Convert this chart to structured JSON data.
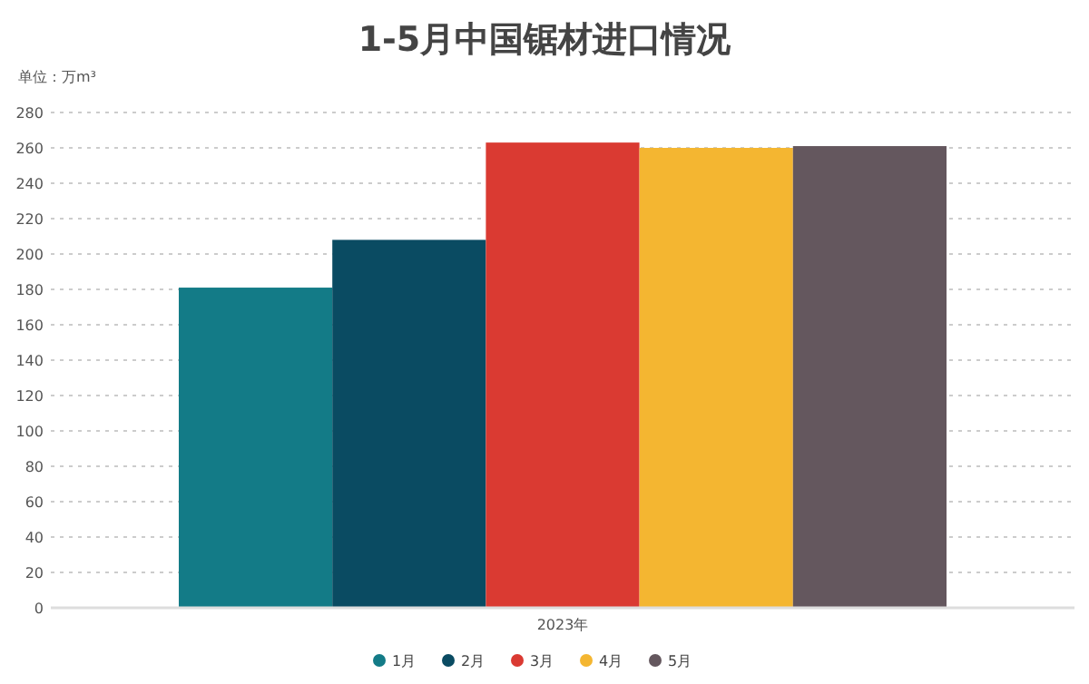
{
  "chart_data": {
    "type": "bar",
    "title": "1-5月中国锯材进口情况",
    "subtitle": "单位：万m³",
    "categories": [
      "2023年"
    ],
    "series": [
      {
        "name": "1月",
        "color": "#137b87",
        "values": [
          181
        ]
      },
      {
        "name": "2月",
        "color": "#0a4b62",
        "values": [
          208
        ]
      },
      {
        "name": "3月",
        "color": "#da3a32",
        "values": [
          263
        ]
      },
      {
        "name": "4月",
        "color": "#f4b631",
        "values": [
          260
        ]
      },
      {
        "name": "5月",
        "color": "#64575e",
        "values": [
          261
        ]
      }
    ],
    "ylim": [
      0,
      280
    ],
    "yticks": [
      0,
      20,
      40,
      60,
      80,
      100,
      120,
      140,
      160,
      180,
      200,
      220,
      240,
      260,
      280
    ],
    "grid": "y",
    "legend": "bottom"
  }
}
